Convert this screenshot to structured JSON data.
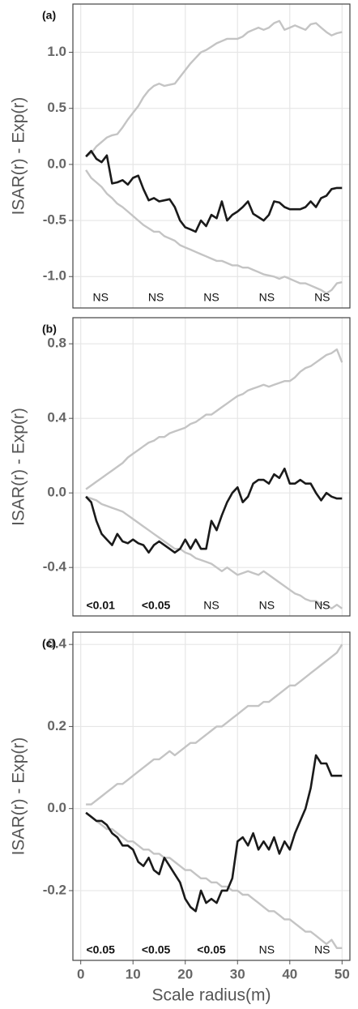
{
  "chart_data": [
    {
      "type": "line",
      "panel_label": "(a)",
      "ylabel": "ISAR(r) - Exp(r)",
      "xtick_labels": false,
      "x": [
        1,
        2,
        3,
        4,
        5,
        6,
        7,
        8,
        9,
        10,
        11,
        12,
        13,
        14,
        15,
        16,
        17,
        18,
        19,
        20,
        21,
        22,
        23,
        24,
        25,
        26,
        27,
        28,
        29,
        30,
        31,
        32,
        33,
        34,
        35,
        36,
        37,
        38,
        39,
        40,
        41,
        42,
        43,
        44,
        45,
        46,
        47,
        48,
        49,
        50
      ],
      "xlim": [
        -1.5,
        51.5
      ],
      "xticks": [
        0,
        10,
        20,
        30,
        40,
        50
      ],
      "ylim": [
        -1.28,
        1.43
      ],
      "yticks": [
        {
          "value": -1,
          "label": "-1.0"
        },
        -0.5,
        {
          "value": 0,
          "label": "0.0"
        },
        0.5,
        {
          "value": 1,
          "label": "1.0"
        }
      ],
      "grid": true,
      "series": [
        {
          "color": "#c4c4c4",
          "values": [
            0.07,
            0.1,
            0.16,
            0.2,
            0.24,
            0.26,
            0.27,
            0.33,
            0.4,
            0.46,
            0.52,
            0.6,
            0.66,
            0.7,
            0.72,
            0.7,
            0.71,
            0.72,
            0.78,
            0.84,
            0.9,
            0.95,
            1.0,
            1.02,
            1.05,
            1.08,
            1.1,
            1.12,
            1.12,
            1.12,
            1.14,
            1.18,
            1.2,
            1.22,
            1.2,
            1.22,
            1.26,
            1.28,
            1.2,
            1.22,
            1.24,
            1.22,
            1.2,
            1.25,
            1.26,
            1.22,
            1.18,
            1.15,
            1.17,
            1.18
          ]
        },
        {
          "color": "#c4c4c4",
          "values": [
            -0.05,
            -0.12,
            -0.16,
            -0.2,
            -0.26,
            -0.3,
            -0.35,
            -0.38,
            -0.42,
            -0.46,
            -0.5,
            -0.54,
            -0.57,
            -0.6,
            -0.6,
            -0.64,
            -0.66,
            -0.68,
            -0.72,
            -0.74,
            -0.76,
            -0.78,
            -0.8,
            -0.82,
            -0.84,
            -0.86,
            -0.86,
            -0.88,
            -0.9,
            -0.9,
            -0.92,
            -0.92,
            -0.94,
            -0.96,
            -0.98,
            -0.99,
            -1.0,
            -1.02,
            -1.0,
            -1.02,
            -1.04,
            -1.06,
            -1.06,
            -1.08,
            -1.1,
            -1.12,
            -1.15,
            -1.12,
            -1.06,
            -1.05
          ]
        },
        {
          "color": "#1a1a1a",
          "values": [
            0.07,
            0.12,
            0.05,
            0.02,
            0.08,
            -0.17,
            -0.16,
            -0.14,
            -0.18,
            -0.12,
            -0.1,
            -0.22,
            -0.32,
            -0.3,
            -0.33,
            -0.32,
            -0.31,
            -0.38,
            -0.5,
            -0.56,
            -0.58,
            -0.6,
            -0.5,
            -0.55,
            -0.45,
            -0.48,
            -0.33,
            -0.5,
            -0.45,
            -0.42,
            -0.38,
            -0.33,
            -0.44,
            -0.47,
            -0.5,
            -0.45,
            -0.33,
            -0.34,
            -0.38,
            -0.4,
            -0.4,
            -0.4,
            -0.38,
            -0.33,
            -0.38,
            -0.3,
            -0.28,
            -0.22,
            -0.21,
            -0.21
          ]
        }
      ],
      "annotations": [
        "NS",
        "NS",
        "NS",
        "NS",
        "NS"
      ]
    },
    {
      "type": "line",
      "panel_label": "(b)",
      "ylabel": "ISAR(r) - Exp(r)",
      "xtick_labels": false,
      "x": [
        1,
        2,
        3,
        4,
        5,
        6,
        7,
        8,
        9,
        10,
        11,
        12,
        13,
        14,
        15,
        16,
        17,
        18,
        19,
        20,
        21,
        22,
        23,
        24,
        25,
        26,
        27,
        28,
        29,
        30,
        31,
        32,
        33,
        34,
        35,
        36,
        37,
        38,
        39,
        40,
        41,
        42,
        43,
        44,
        45,
        46,
        47,
        48,
        49,
        50
      ],
      "xlim": [
        -1.5,
        51.5
      ],
      "xticks": [
        0,
        10,
        20,
        30,
        40,
        50
      ],
      "ylim": [
        -0.66,
        0.94
      ],
      "yticks": [
        -0.4,
        {
          "value": 0,
          "label": "0.0"
        },
        0.4,
        0.8
      ],
      "grid": true,
      "series": [
        {
          "color": "#c4c4c4",
          "values": [
            0.02,
            0.04,
            0.06,
            0.08,
            0.1,
            0.12,
            0.14,
            0.16,
            0.19,
            0.21,
            0.23,
            0.25,
            0.27,
            0.28,
            0.3,
            0.3,
            0.32,
            0.33,
            0.34,
            0.35,
            0.37,
            0.38,
            0.4,
            0.42,
            0.42,
            0.44,
            0.46,
            0.48,
            0.5,
            0.52,
            0.53,
            0.55,
            0.56,
            0.57,
            0.58,
            0.57,
            0.58,
            0.59,
            0.6,
            0.6,
            0.62,
            0.65,
            0.67,
            0.68,
            0.7,
            0.72,
            0.74,
            0.75,
            0.77,
            0.7
          ]
        },
        {
          "color": "#c4c4c4",
          "values": [
            -0.02,
            -0.03,
            -0.04,
            -0.06,
            -0.07,
            -0.08,
            -0.09,
            -0.1,
            -0.12,
            -0.14,
            -0.16,
            -0.18,
            -0.2,
            -0.22,
            -0.24,
            -0.26,
            -0.28,
            -0.3,
            -0.3,
            -0.32,
            -0.33,
            -0.35,
            -0.36,
            -0.37,
            -0.38,
            -0.4,
            -0.42,
            -0.4,
            -0.42,
            -0.44,
            -0.43,
            -0.42,
            -0.43,
            -0.44,
            -0.42,
            -0.44,
            -0.46,
            -0.48,
            -0.5,
            -0.52,
            -0.54,
            -0.55,
            -0.57,
            -0.58,
            -0.58,
            -0.6,
            -0.6,
            -0.62,
            -0.6,
            -0.62
          ]
        },
        {
          "color": "#1a1a1a",
          "values": [
            -0.02,
            -0.05,
            -0.15,
            -0.22,
            -0.25,
            -0.28,
            -0.22,
            -0.26,
            -0.27,
            -0.25,
            -0.27,
            -0.28,
            -0.32,
            -0.28,
            -0.26,
            -0.28,
            -0.3,
            -0.32,
            -0.3,
            -0.25,
            -0.3,
            -0.25,
            -0.3,
            -0.3,
            -0.15,
            -0.2,
            -0.12,
            -0.05,
            0.0,
            0.03,
            -0.05,
            -0.02,
            0.05,
            0.07,
            0.07,
            0.05,
            0.1,
            0.08,
            0.13,
            0.05,
            0.05,
            0.07,
            0.05,
            0.05,
            0.0,
            -0.04,
            0.0,
            -0.02,
            -0.03,
            -0.03
          ]
        }
      ],
      "annotations": [
        "<0.01",
        "<0.05",
        "NS",
        "NS",
        "NS"
      ]
    },
    {
      "type": "line",
      "panel_label": "(c)",
      "ylabel": "ISAR(r) - Exp(r)",
      "xlabel": "Scale radius(m)",
      "xtick_labels": true,
      "x": [
        1,
        2,
        3,
        4,
        5,
        6,
        7,
        8,
        9,
        10,
        11,
        12,
        13,
        14,
        15,
        16,
        17,
        18,
        19,
        20,
        21,
        22,
        23,
        24,
        25,
        26,
        27,
        28,
        29,
        30,
        31,
        32,
        33,
        34,
        35,
        36,
        37,
        38,
        39,
        40,
        41,
        42,
        43,
        44,
        45,
        46,
        47,
        48,
        49,
        50
      ],
      "xlim": [
        -1.5,
        51.5
      ],
      "xticks": [
        0,
        10,
        20,
        30,
        40,
        50
      ],
      "ylim": [
        -0.37,
        0.43
      ],
      "yticks": [
        -0.2,
        {
          "value": 0,
          "label": "0.0"
        },
        0.2,
        0.4
      ],
      "grid": true,
      "series": [
        {
          "color": "#c4c4c4",
          "values": [
            0.01,
            0.01,
            0.02,
            0.03,
            0.04,
            0.05,
            0.06,
            0.06,
            0.07,
            0.08,
            0.09,
            0.1,
            0.11,
            0.12,
            0.12,
            0.13,
            0.14,
            0.13,
            0.14,
            0.15,
            0.16,
            0.16,
            0.17,
            0.18,
            0.19,
            0.2,
            0.2,
            0.21,
            0.22,
            0.23,
            0.24,
            0.25,
            0.25,
            0.25,
            0.26,
            0.26,
            0.27,
            0.28,
            0.29,
            0.3,
            0.3,
            0.31,
            0.32,
            0.33,
            0.34,
            0.35,
            0.36,
            0.37,
            0.38,
            0.4
          ]
        },
        {
          "color": "#c4c4c4",
          "values": [
            -0.01,
            -0.02,
            -0.03,
            -0.04,
            -0.05,
            -0.05,
            -0.06,
            -0.07,
            -0.08,
            -0.08,
            -0.09,
            -0.1,
            -0.1,
            -0.11,
            -0.11,
            -0.12,
            -0.12,
            -0.13,
            -0.14,
            -0.15,
            -0.15,
            -0.16,
            -0.17,
            -0.17,
            -0.18,
            -0.18,
            -0.19,
            -0.19,
            -0.2,
            -0.2,
            -0.21,
            -0.21,
            -0.22,
            -0.23,
            -0.24,
            -0.25,
            -0.25,
            -0.26,
            -0.27,
            -0.27,
            -0.28,
            -0.29,
            -0.3,
            -0.3,
            -0.31,
            -0.32,
            -0.33,
            -0.32,
            -0.34,
            -0.34
          ]
        },
        {
          "color": "#1a1a1a",
          "values": [
            -0.01,
            -0.02,
            -0.03,
            -0.03,
            -0.04,
            -0.06,
            -0.07,
            -0.09,
            -0.09,
            -0.1,
            -0.13,
            -0.14,
            -0.12,
            -0.15,
            -0.16,
            -0.12,
            -0.14,
            -0.16,
            -0.18,
            -0.22,
            -0.24,
            -0.25,
            -0.2,
            -0.23,
            -0.22,
            -0.23,
            -0.2,
            -0.2,
            -0.17,
            -0.08,
            -0.07,
            -0.09,
            -0.06,
            -0.1,
            -0.08,
            -0.1,
            -0.07,
            -0.11,
            -0.08,
            -0.1,
            -0.06,
            -0.03,
            0.0,
            0.05,
            0.13,
            0.11,
            0.11,
            0.08,
            0.08,
            0.08
          ]
        }
      ],
      "annotations": [
        "<0.05",
        "<0.05",
        "<0.05",
        "NS",
        "NS"
      ]
    }
  ]
}
